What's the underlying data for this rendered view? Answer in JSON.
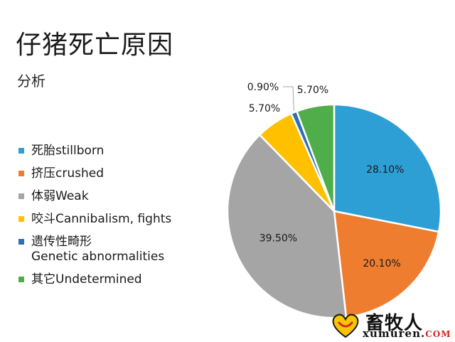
{
  "slide": {
    "title": "仔猪死亡原因",
    "subtitle": "分析"
  },
  "chart_data": {
    "type": "pie",
    "title": "仔猪死亡原因",
    "subtitle": "分析",
    "legend_position": "left",
    "slices": [
      {
        "label": "死胎stillborn",
        "value": 28.1,
        "value_label": "28.10%",
        "color": "#2e9fd5"
      },
      {
        "label": "挤压crushed",
        "value": 20.1,
        "value_label": "20.10%",
        "color": "#ef7d2f"
      },
      {
        "label": "体弱Weak",
        "value": 39.5,
        "value_label": "39.50%",
        "color": "#a5a5a5"
      },
      {
        "label": "咬斗Cannibalism, fights",
        "value": 5.7,
        "value_label": "5.70%",
        "color": "#ffc000"
      },
      {
        "label": "遗传性畸形 Genetic abnormalities",
        "label_lines": [
          "遗传性畸形",
          "Genetic abnormalities"
        ],
        "value": 0.9,
        "value_label": "0.90%",
        "color": "#2f6fb5"
      },
      {
        "label": "其它Undetermined",
        "value": 5.7,
        "value_label": "5.70%",
        "color": "#4fae4a"
      }
    ]
  },
  "watermark": {
    "name": "畜牧人",
    "site_main": "xumuren.",
    "site_tld": "COM"
  }
}
